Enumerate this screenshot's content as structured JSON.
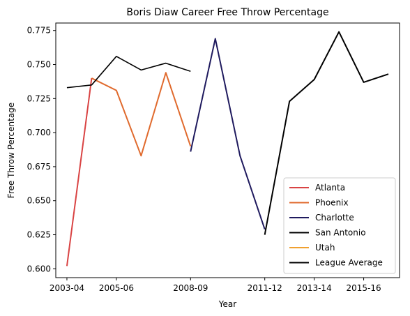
{
  "chart_data": {
    "type": "line",
    "title": "Boris Diaw Career Free Throw Percentage",
    "xlabel": "Year",
    "ylabel": "Free Throw Percentage",
    "x_tick_labels": [
      "2003-04",
      "2005-06",
      "2008-09",
      "2011-12",
      "2013-14",
      "2015-16"
    ],
    "x_tick_positions": [
      0,
      2,
      5,
      8,
      10,
      12
    ],
    "y_tick_labels": [
      "0.600",
      "0.625",
      "0.650",
      "0.675",
      "0.700",
      "0.725",
      "0.750",
      "0.775"
    ],
    "y_tick_values": [
      0.6,
      0.625,
      0.65,
      0.675,
      0.7,
      0.725,
      0.75,
      0.775
    ],
    "xlim": [
      -0.45,
      13.45
    ],
    "ylim": [
      0.5935,
      0.7805
    ],
    "grid": false,
    "legend_position": "lower-right",
    "series": [
      {
        "name": "Atlanta",
        "color": "#d94343",
        "points": [
          [
            0,
            0.602
          ],
          [
            1,
            0.74
          ]
        ]
      },
      {
        "name": "Phoenix",
        "color": "#e06a2d",
        "points": [
          [
            1,
            0.74
          ],
          [
            2,
            0.731
          ],
          [
            3,
            0.683
          ],
          [
            4,
            0.744
          ],
          [
            5,
            0.69
          ]
        ]
      },
      {
        "name": "Charlotte",
        "color": "#1f1a5e",
        "points": [
          [
            5,
            0.686
          ],
          [
            6,
            0.769
          ],
          [
            7,
            0.683
          ],
          [
            8,
            0.629
          ]
        ]
      },
      {
        "name": "San Antonio",
        "color": "#000000",
        "points": [
          [
            8,
            0.625
          ],
          [
            9,
            0.723
          ],
          [
            10,
            0.739
          ],
          [
            11,
            0.774
          ],
          [
            12,
            0.737
          ],
          [
            13,
            0.743
          ]
        ]
      },
      {
        "name": "Utah",
        "color": "#f0a030",
        "points": []
      },
      {
        "name": "League Average",
        "color": "#000000",
        "points": [
          [
            0,
            0.733
          ],
          [
            1,
            0.735
          ],
          [
            2,
            0.756
          ],
          [
            3,
            0.746
          ],
          [
            4,
            0.751
          ],
          [
            5,
            0.745
          ]
        ]
      }
    ]
  }
}
